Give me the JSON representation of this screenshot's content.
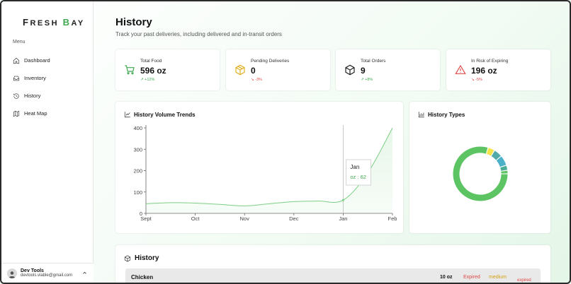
{
  "app": {
    "logo_first": "F",
    "logo_rest1": "RESH ",
    "logo_second": "B",
    "logo_rest2": "AY"
  },
  "sidebar": {
    "menu_label": "Menu",
    "items": [
      {
        "label": "Dashboard",
        "icon": "home-icon"
      },
      {
        "label": "Inventory",
        "icon": "inbox-icon"
      },
      {
        "label": "History",
        "icon": "history-icon"
      },
      {
        "label": "Heat Map",
        "icon": "map-icon"
      }
    ],
    "user": {
      "name": "Dev Tools",
      "email": "devtools.viable@gmail.com"
    }
  },
  "header": {
    "title": "History",
    "subtitle": "Track your past deliveries, including delivered and in-transit orders"
  },
  "stats": [
    {
      "label": "Total Food",
      "value": "596 oz",
      "change": "↗ +12%",
      "trend": "up",
      "icon": "cart-icon",
      "color": "#3fa84f"
    },
    {
      "label": "Pending Deliveries",
      "value": "0",
      "change": "↘ -3%",
      "trend": "down",
      "icon": "box-icon",
      "color": "#e0b020"
    },
    {
      "label": "Total Orders",
      "value": "9",
      "change": "↗ +8%",
      "trend": "up",
      "icon": "package-icon",
      "color": "#222222"
    },
    {
      "label": "In Risk of Expiring",
      "value": "196 oz",
      "change": "↘ -5%",
      "trend": "down",
      "icon": "warning-icon",
      "color": "#e04848"
    }
  ],
  "volume_chart": {
    "title": "History Volume Trends",
    "tooltip": {
      "month": "Jan",
      "text": "oz : 62"
    }
  },
  "types_chart": {
    "title": "History Types"
  },
  "chart_data": [
    {
      "type": "area",
      "title": "History Volume Trends",
      "categories": [
        "Sept",
        "Oct",
        "Nov",
        "Dec",
        "Jan",
        "Feb"
      ],
      "x": [
        0,
        0.5,
        1,
        1.5,
        2,
        2.5,
        3,
        3.5,
        4,
        4.5,
        5
      ],
      "values": [
        45,
        50,
        48,
        42,
        35,
        45,
        55,
        58,
        62,
        190,
        400
      ],
      "yticks": [
        0,
        100,
        200,
        300,
        400
      ],
      "ylim": [
        0,
        400
      ],
      "grid": false,
      "color": "#7dcf85"
    },
    {
      "type": "pie",
      "title": "History Types",
      "values": [
        78,
        4,
        5,
        6,
        3,
        2
      ],
      "colors": [
        "#5cc463",
        "#f6e24a",
        "#4faaa8",
        "#4bb1c9",
        "#4cae96",
        "#5cc463"
      ]
    }
  ],
  "history": {
    "title": "History",
    "rows": [
      {
        "name": "Chicken",
        "qty": "10 oz",
        "status": "Expired",
        "risk": "medium",
        "tag": "expired"
      }
    ]
  }
}
